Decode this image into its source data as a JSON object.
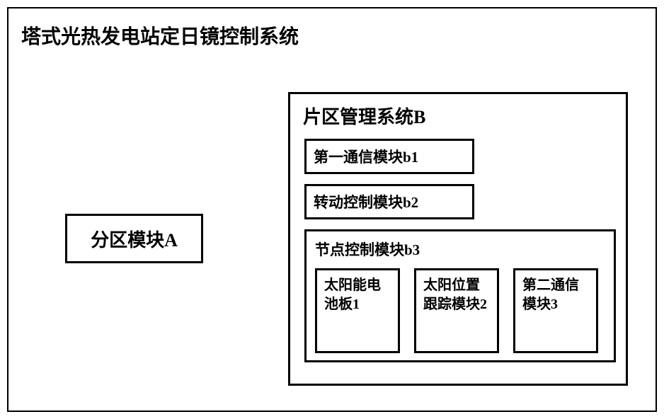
{
  "diagram": {
    "title": "塔式光热发电站定日镜控制系统",
    "background_color": "#ffffff",
    "border_color": "#000000",
    "font_family": "SimSun",
    "title_fontsize": 28,
    "module_fontsize": 26,
    "sub_title_fontsize": 21,
    "sub_module_fontsize": 20
  },
  "moduleA": {
    "label": "分区模块A"
  },
  "systemB": {
    "title": "片区管理系统B",
    "b1": {
      "label": "第一通信模块b1"
    },
    "b2": {
      "label": "转动控制模块b2"
    },
    "b3": {
      "title": "节点控制模块b3",
      "items": [
        {
          "label": "太阳能电池板1"
        },
        {
          "label": "太阳位置跟踪模块2"
        },
        {
          "label": "第二通信模块3"
        }
      ]
    }
  }
}
